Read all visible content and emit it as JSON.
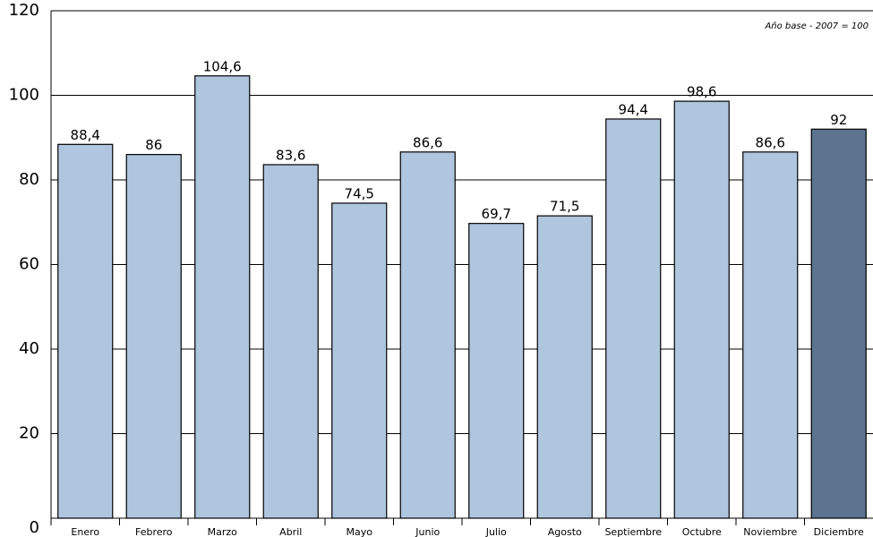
{
  "chart_data": {
    "type": "bar",
    "annotation": "Año base - 2007 = 100",
    "categories": [
      "Enero",
      "Febrero",
      "Marzo",
      "Abril",
      "Mayo",
      "Junio",
      "Julio",
      "Agosto",
      "Septiembre",
      "Octubre",
      "Noviembre",
      "Diciembre"
    ],
    "values": [
      88.4,
      86,
      104.6,
      83.6,
      74.5,
      86.6,
      69.7,
      71.5,
      94.4,
      98.6,
      86.6,
      92
    ],
    "value_labels": [
      "88,4",
      "86",
      "104,6",
      "83,6",
      "74,5",
      "86,6",
      "69,7",
      "71,5",
      "94,4",
      "98,6",
      "86,6",
      "92"
    ],
    "colors": [
      "#b0c5de",
      "#b0c5de",
      "#b0c5de",
      "#b0c5de",
      "#b0c5de",
      "#b0c5de",
      "#b0c5de",
      "#b0c5de",
      "#b0c5de",
      "#b0c5de",
      "#b0c5de",
      "#5d7490"
    ],
    "ylim": [
      0,
      120
    ],
    "yticks": [
      0,
      20,
      40,
      60,
      80,
      100,
      120
    ],
    "grid": true
  }
}
